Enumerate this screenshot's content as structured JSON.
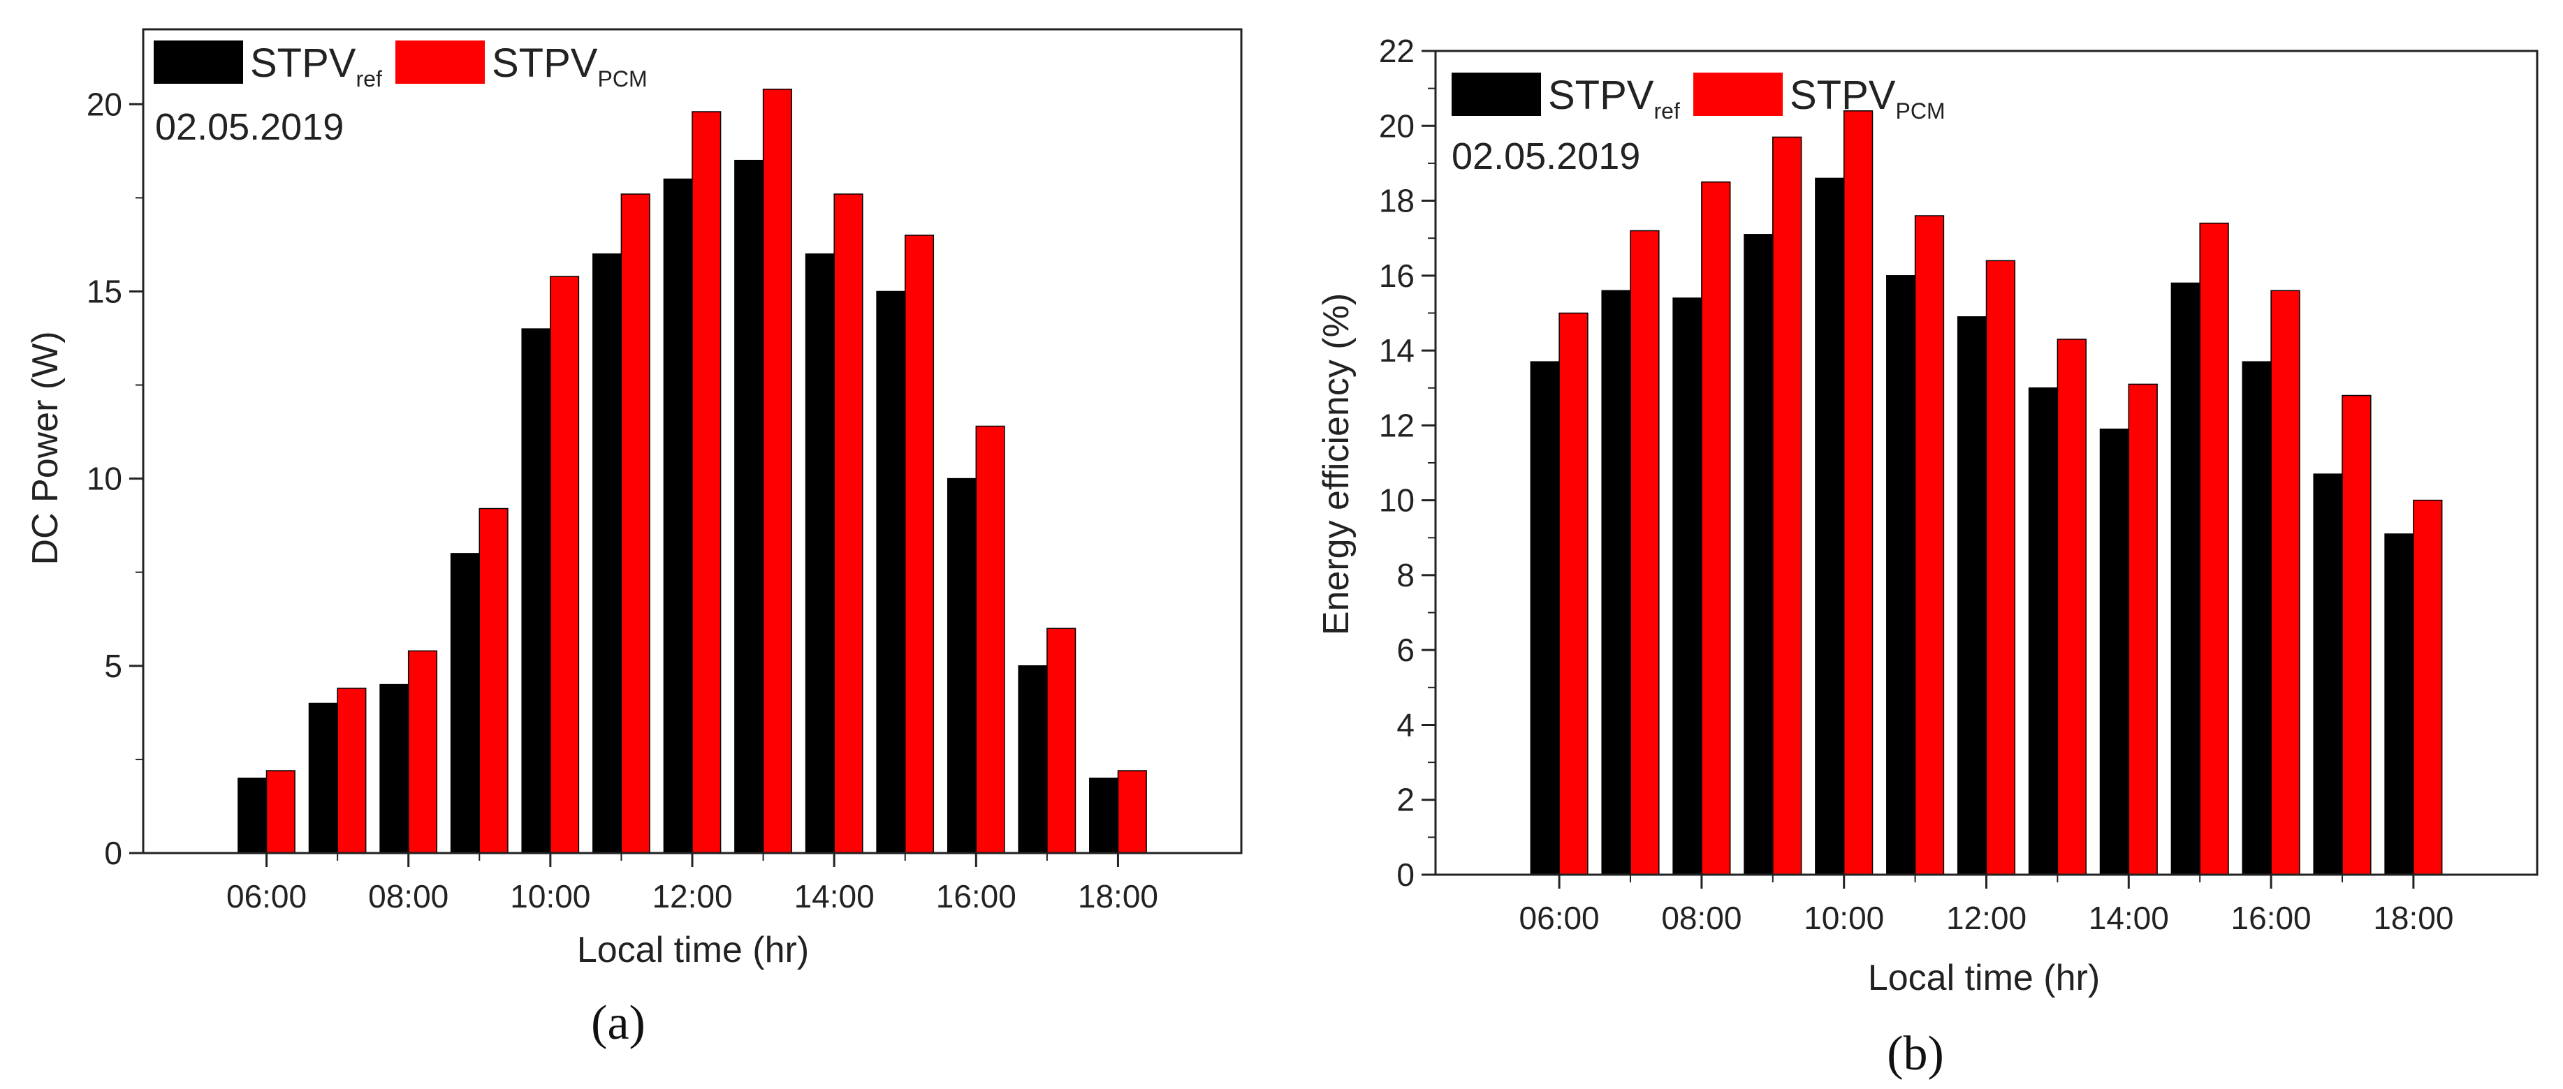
{
  "colors": {
    "ref": "#000000",
    "pcm": "#ff0000"
  },
  "legend": {
    "ref": {
      "base": "STPV",
      "sub": "ref"
    },
    "pcm": {
      "base": "STPV",
      "sub": "PCM"
    }
  },
  "chart_data": [
    {
      "type": "bar",
      "panel_label": "(a)",
      "date": "02.05.2019",
      "xlabel": "Local time (hr)",
      "ylabel": "DC Power (W)",
      "ylim": [
        0,
        22
      ],
      "yticks": [
        0,
        5,
        10,
        15,
        20
      ],
      "minor_step": 2.5,
      "categories": [
        "06:00",
        "07:00",
        "08:00",
        "09:00",
        "10:00",
        "11:00",
        "12:00",
        "13:00",
        "14:00",
        "15:00",
        "16:00",
        "17:00",
        "18:00"
      ],
      "xtick_labels": [
        "06:00",
        "08:00",
        "10:00",
        "12:00",
        "14:00",
        "16:00",
        "18:00"
      ],
      "legend_position": "top-left",
      "series": [
        {
          "name": "STPVref",
          "color": "#000000",
          "values": [
            2.0,
            4.0,
            4.5,
            8.0,
            14.0,
            16.0,
            18.0,
            18.5,
            16.0,
            15.0,
            10.0,
            5.0,
            2.0
          ]
        },
        {
          "name": "STPVPCM",
          "color": "#ff0000",
          "values": [
            2.2,
            4.4,
            5.4,
            9.2,
            15.4,
            17.6,
            19.8,
            20.4,
            17.6,
            16.5,
            11.4,
            6.0,
            2.2
          ]
        }
      ]
    },
    {
      "type": "bar",
      "panel_label": "(b)",
      "date": "02.05.2019",
      "xlabel": "Local time (hr)",
      "ylabel": "Energy efficiency (%)",
      "ylim": [
        0,
        22
      ],
      "yticks": [
        0,
        2,
        4,
        6,
        8,
        10,
        12,
        14,
        16,
        18,
        20,
        22
      ],
      "minor_step": 1,
      "categories": [
        "06:00",
        "07:00",
        "08:00",
        "09:00",
        "10:00",
        "11:00",
        "12:00",
        "13:00",
        "14:00",
        "15:00",
        "16:00",
        "17:00",
        "18:00"
      ],
      "xtick_labels": [
        "06:00",
        "08:00",
        "10:00",
        "12:00",
        "14:00",
        "16:00",
        "18:00"
      ],
      "legend_position": "top-left",
      "series": [
        {
          "name": "STPVref",
          "color": "#000000",
          "values": [
            13.7,
            15.6,
            15.4,
            17.1,
            18.6,
            16.0,
            14.9,
            13.0,
            11.9,
            15.8,
            13.7,
            10.7,
            9.1
          ]
        },
        {
          "name": "STPVPCM",
          "color": "#ff0000",
          "values": [
            15.0,
            17.2,
            18.5,
            19.7,
            20.4,
            17.6,
            16.4,
            14.3,
            13.1,
            17.4,
            15.6,
            12.8,
            10.0
          ]
        }
      ]
    }
  ]
}
